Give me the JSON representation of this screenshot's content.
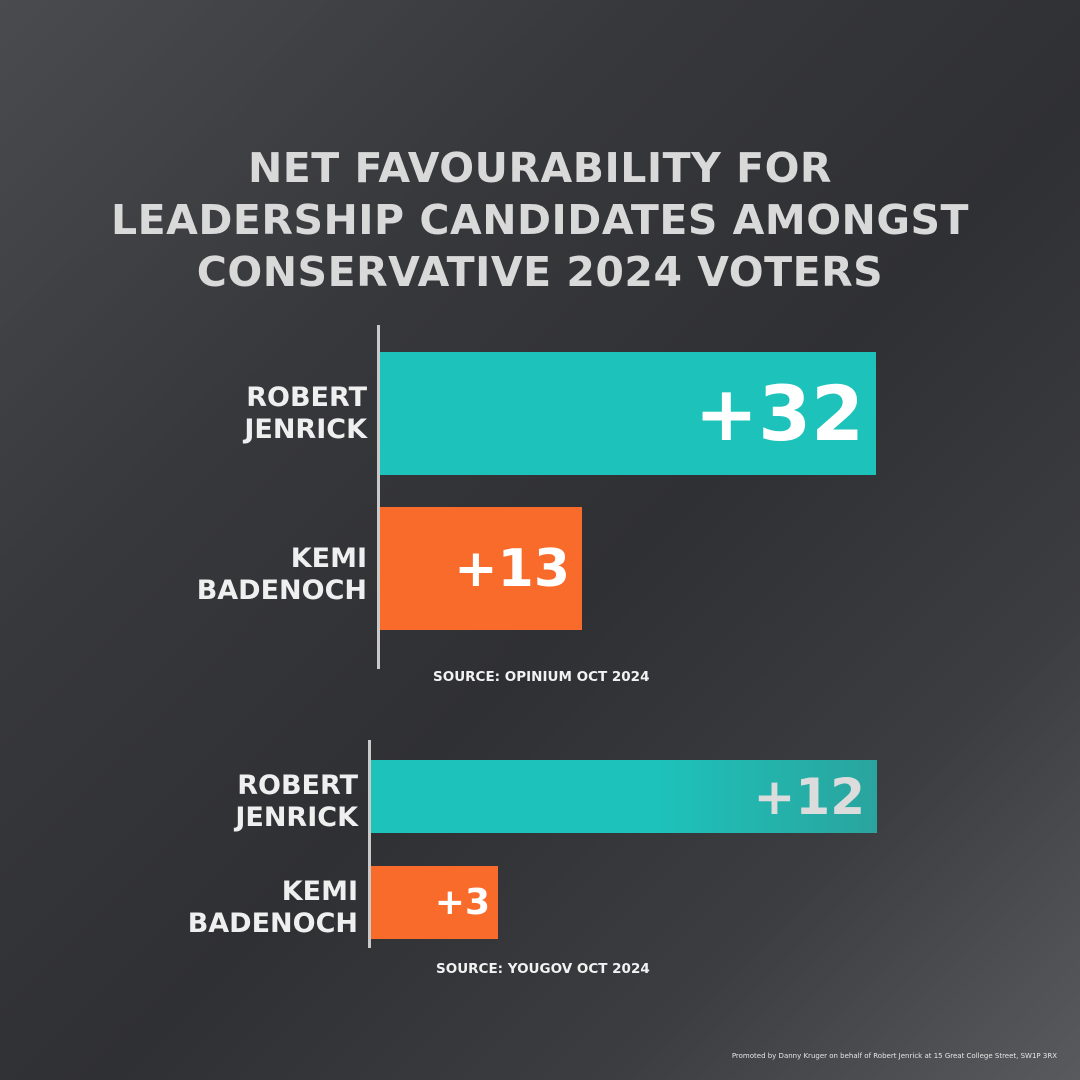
{
  "colors": {
    "teal": "#1dc3bb",
    "orange": "#f96b2b"
  },
  "chart_data": [
    {
      "type": "bar",
      "title": "NET FAVOURABILITY FOR LEADERSHIP CANDIDATES AMONGST CONSERVATIVE 2024 VOTERS",
      "title_lines": [
        "NET FAVOURABILITY FOR",
        "LEADERSHIP CANDIDATES AMONGST",
        "CONSERVATIVE 2024 VOTERS"
      ],
      "categories": [
        [
          "ROBERT",
          "JENRICK"
        ],
        [
          "KEMI",
          "BADENOCH"
        ]
      ],
      "values": [
        32,
        13
      ],
      "labels": [
        "+32",
        "+13"
      ],
      "bar_colors": [
        "#1dc3bb",
        "#f96b2b"
      ],
      "source": "SOURCE: OPINIUM OCT 2024"
    },
    {
      "type": "bar",
      "categories": [
        [
          "ROBERT",
          "JENRICK"
        ],
        [
          "KEMI",
          "BADENOCH"
        ]
      ],
      "values": [
        12,
        3
      ],
      "labels": [
        "+12",
        "+3"
      ],
      "bar_colors": [
        "#1dc3bb",
        "#f96b2b"
      ],
      "source": "SOURCE: YOUGOV OCT 2024"
    }
  ],
  "footer": "Promoted by Danny Kruger on behalf of Robert Jenrick at 15 Great College Street, SW1P 3RX"
}
